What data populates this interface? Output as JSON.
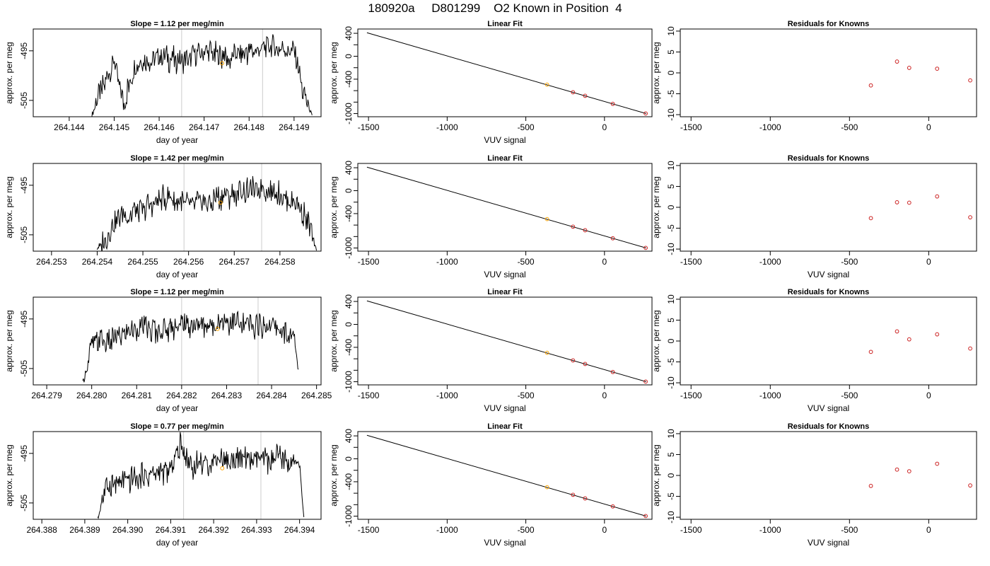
{
  "page": {
    "title": "180920a     D801299    O2 Known in Position  4"
  },
  "chart_data": [
    {
      "type": "line",
      "panel": "timeseries",
      "title": "Slope =  1.12  per meg/min",
      "xlabel": "day of year",
      "ylabel": "approx. per meg",
      "xlim": [
        264.1432,
        264.1496
      ],
      "ylim": [
        -508.3,
        -490.6
      ],
      "xticks": [
        "264.144",
        "264.145",
        "264.146",
        "264.147",
        "264.148",
        "264.149"
      ],
      "yticks": [
        "-495",
        "-505"
      ],
      "vlines": [
        264.1465,
        264.1483
      ],
      "series": [
        {
          "x": [
            264.1445,
            264.145,
            264.1452,
            264.1455,
            264.146,
            264.1465,
            264.147,
            264.1475,
            264.148,
            264.1485,
            264.149,
            264.1492,
            264.1494
          ],
          "y": [
            -508.0,
            -496.5,
            -505.5,
            -497.5,
            -496.0,
            -497.5,
            -495.0,
            -496.5,
            -495.0,
            -494.5,
            -495.5,
            -503.0,
            -508.3
          ]
        }
      ],
      "points": [
        {
          "x": 264.1474,
          "y": -497.5,
          "color": "#ffa500"
        }
      ]
    },
    {
      "type": "scatter",
      "panel": "fit",
      "title": "Linear Fit",
      "xlabel": "VUV signal",
      "ylabel": "approx. per meg",
      "xlim": [
        -1568,
        302
      ],
      "ylim": [
        -1055,
        475
      ],
      "xticks": [
        -1500,
        -1000,
        -500,
        0
      ],
      "yticks": [
        400,
        0,
        -400,
        -1000
      ],
      "fit_line": {
        "x": [
          -1510,
          265
        ],
        "y": [
          410,
          -1000
        ]
      },
      "points": [
        {
          "x": -365,
          "y": -495,
          "color": "#ffa500"
        },
        {
          "x": -200,
          "y": -628,
          "color": "#cc2222"
        },
        {
          "x": -123,
          "y": -690,
          "color": "#cc2222"
        },
        {
          "x": 53,
          "y": -830,
          "color": "#cc2222"
        },
        {
          "x": 262,
          "y": -998,
          "color": "#cc2222"
        }
      ]
    },
    {
      "type": "scatter",
      "panel": "residuals",
      "title": "Residuals for Knowns",
      "xlabel": "",
      "ylabel": "approx. per meg",
      "xlim": [
        -1568,
        302
      ],
      "ylim": [
        -10.5,
        10.5
      ],
      "xticks": [
        -1500,
        -1000,
        -500,
        0
      ],
      "yticks": [
        10,
        5,
        0,
        -5,
        -10
      ],
      "points": [
        {
          "x": -365,
          "y": -3.0,
          "color": "#cc2222"
        },
        {
          "x": -200,
          "y": 2.7,
          "color": "#cc2222"
        },
        {
          "x": -123,
          "y": 1.2,
          "color": "#cc2222"
        },
        {
          "x": 53,
          "y": 1.0,
          "color": "#cc2222"
        },
        {
          "x": 262,
          "y": -1.8,
          "color": "#cc2222"
        }
      ]
    },
    {
      "type": "line",
      "panel": "timeseries",
      "title": "Slope =  1.42  per meg/min",
      "xlabel": "day of year",
      "ylabel": "approx. per meg",
      "xlim": [
        264.2526,
        264.2589
      ],
      "ylim": [
        -508.3,
        -490.6
      ],
      "xticks": [
        "264.253",
        "264.254",
        "264.255",
        "264.256",
        "264.257",
        "264.258"
      ],
      "yticks": [
        "-495",
        "-505"
      ],
      "vlines": [
        264.2559,
        264.2576
      ],
      "series": [
        {
          "x": [
            264.254,
            264.2545,
            264.255,
            264.2555,
            264.256,
            264.2565,
            264.257,
            264.2575,
            264.258,
            264.2585,
            264.2587,
            264.2588
          ],
          "y": [
            -508.0,
            -501.5,
            -500.0,
            -497.5,
            -499.0,
            -498.0,
            -497.0,
            -495.5,
            -496.5,
            -500.0,
            -505.0,
            -508.3
          ]
        }
      ],
      "points": [
        {
          "x": 264.2567,
          "y": -498.5,
          "color": "#ffa500"
        }
      ]
    },
    {
      "type": "scatter",
      "panel": "fit",
      "title": "Linear Fit",
      "xlabel": "VUV signal",
      "ylabel": "approx. per meg",
      "xlim": [
        -1568,
        302
      ],
      "ylim": [
        -1055,
        475
      ],
      "xticks": [
        -1500,
        -1000,
        -500,
        0
      ],
      "yticks": [
        400,
        0,
        -400,
        -1000
      ],
      "fit_line": {
        "x": [
          -1510,
          265
        ],
        "y": [
          410,
          -1000
        ]
      },
      "points": [
        {
          "x": -365,
          "y": -495,
          "color": "#ffa500"
        },
        {
          "x": -200,
          "y": -628,
          "color": "#cc2222"
        },
        {
          "x": -123,
          "y": -690,
          "color": "#cc2222"
        },
        {
          "x": 53,
          "y": -830,
          "color": "#cc2222"
        },
        {
          "x": 262,
          "y": -998,
          "color": "#cc2222"
        }
      ]
    },
    {
      "type": "scatter",
      "panel": "residuals",
      "title": "Residuals for Knowns",
      "xlabel": "VUV signal",
      "ylabel": "approx. per meg",
      "xlim": [
        -1568,
        302
      ],
      "ylim": [
        -10.5,
        10.5
      ],
      "xticks": [
        -1500,
        -1000,
        -500,
        0
      ],
      "yticks": [
        10,
        5,
        0,
        -5,
        -10
      ],
      "points": [
        {
          "x": -365,
          "y": -2.6,
          "color": "#cc2222"
        },
        {
          "x": -200,
          "y": 1.2,
          "color": "#cc2222"
        },
        {
          "x": -123,
          "y": 1.1,
          "color": "#cc2222"
        },
        {
          "x": 53,
          "y": 2.6,
          "color": "#cc2222"
        },
        {
          "x": 262,
          "y": -2.4,
          "color": "#cc2222"
        }
      ]
    },
    {
      "type": "line",
      "panel": "timeseries",
      "title": "Slope =  1.12  per meg/min",
      "xlabel": "day of year",
      "ylabel": "approx. per meg",
      "xlim": [
        264.2787,
        264.2851
      ],
      "ylim": [
        -508.3,
        -490.6
      ],
      "xticks": [
        "264.279",
        "264.280",
        "264.281",
        "264.282",
        "264.283",
        "264.284",
        "264.285"
      ],
      "yticks": [
        "-495",
        "-505"
      ],
      "vlines": [
        264.282,
        264.2837
      ],
      "series": [
        {
          "x": [
            264.2798,
            264.28,
            264.2805,
            264.281,
            264.2815,
            264.282,
            264.2825,
            264.283,
            264.2835,
            264.284,
            264.2845,
            264.2846
          ],
          "y": [
            -508.3,
            -500.0,
            -499.0,
            -497.0,
            -497.5,
            -496.0,
            -496.5,
            -495.5,
            -496.5,
            -496.0,
            -499.0,
            -505.5
          ]
        }
      ],
      "points": [
        {
          "x": 264.2828,
          "y": -497.0,
          "color": "#ffa500"
        }
      ]
    },
    {
      "type": "scatter",
      "panel": "fit",
      "title": "Linear Fit",
      "xlabel": "VUV signal",
      "ylabel": "approx. per meg",
      "xlim": [
        -1568,
        302
      ],
      "ylim": [
        -1055,
        475
      ],
      "xticks": [
        -1500,
        -1000,
        -500,
        0
      ],
      "yticks": [
        400,
        0,
        -400,
        -1000
      ],
      "fit_line": {
        "x": [
          -1510,
          265
        ],
        "y": [
          410,
          -1000
        ]
      },
      "points": [
        {
          "x": -365,
          "y": -495,
          "color": "#ffa500"
        },
        {
          "x": -200,
          "y": -628,
          "color": "#cc2222"
        },
        {
          "x": -123,
          "y": -690,
          "color": "#cc2222"
        },
        {
          "x": 53,
          "y": -830,
          "color": "#cc2222"
        },
        {
          "x": 262,
          "y": -998,
          "color": "#cc2222"
        }
      ]
    },
    {
      "type": "scatter",
      "panel": "residuals",
      "title": "Residuals for Knowns",
      "xlabel": "VUV signal",
      "ylabel": "approx. per meg",
      "xlim": [
        -1568,
        302
      ],
      "ylim": [
        -10.5,
        10.5
      ],
      "xticks": [
        -1500,
        -1000,
        -500,
        0
      ],
      "yticks": [
        10,
        5,
        0,
        -5,
        -10
      ],
      "points": [
        {
          "x": -365,
          "y": -2.6,
          "color": "#cc2222"
        },
        {
          "x": -200,
          "y": 2.3,
          "color": "#cc2222"
        },
        {
          "x": -123,
          "y": 0.4,
          "color": "#cc2222"
        },
        {
          "x": 53,
          "y": 1.6,
          "color": "#cc2222"
        },
        {
          "x": 262,
          "y": -1.8,
          "color": "#cc2222"
        }
      ]
    },
    {
      "type": "line",
      "panel": "timeseries",
      "title": "Slope =  0.77  per meg/min",
      "xlabel": "day of year",
      "ylabel": "approx. per meg",
      "xlim": [
        264.3878,
        264.3945
      ],
      "ylim": [
        -508.3,
        -490.6
      ],
      "xticks": [
        "264.388",
        "264.389",
        "264.390",
        "264.391",
        "264.392",
        "264.393",
        "264.394"
      ],
      "yticks": [
        "-495",
        "-505"
      ],
      "vlines": [
        264.3913,
        264.3931
      ],
      "series": [
        {
          "x": [
            264.3893,
            264.3895,
            264.39,
            264.3905,
            264.391,
            264.3912,
            264.3915,
            264.392,
            264.3925,
            264.393,
            264.3935,
            264.394,
            264.3941
          ],
          "y": [
            -508.3,
            -501.0,
            -500.5,
            -499.5,
            -498.5,
            -493.5,
            -497.5,
            -496.5,
            -496.0,
            -496.5,
            -496.0,
            -497.5,
            -508.0
          ]
        }
      ],
      "points": [
        {
          "x": 264.3922,
          "y": -498.0,
          "color": "#ffa500"
        }
      ]
    },
    {
      "type": "scatter",
      "panel": "fit",
      "title": "Linear Fit",
      "xlabel": "VUV signal",
      "ylabel": "approx. per meg",
      "xlim": [
        -1568,
        302
      ],
      "ylim": [
        -1055,
        475
      ],
      "xticks": [
        -1500,
        -1000,
        -500,
        0
      ],
      "yticks": [
        400,
        0,
        -400,
        -1000
      ],
      "fit_line": {
        "x": [
          -1510,
          265
        ],
        "y": [
          410,
          -1000
        ]
      },
      "points": [
        {
          "x": -365,
          "y": -495,
          "color": "#ffa500"
        },
        {
          "x": -200,
          "y": -628,
          "color": "#cc2222"
        },
        {
          "x": -123,
          "y": -690,
          "color": "#cc2222"
        },
        {
          "x": 53,
          "y": -830,
          "color": "#cc2222"
        },
        {
          "x": 262,
          "y": -998,
          "color": "#cc2222"
        }
      ]
    },
    {
      "type": "scatter",
      "panel": "residuals",
      "title": "Residuals for Knowns",
      "xlabel": "VUV signal",
      "ylabel": "approx. per meg",
      "xlim": [
        -1568,
        302
      ],
      "ylim": [
        -10.5,
        10.5
      ],
      "xticks": [
        -1500,
        -1000,
        -500,
        0
      ],
      "yticks": [
        10,
        5,
        0,
        -5,
        -10
      ],
      "points": [
        {
          "x": -365,
          "y": -2.5,
          "color": "#cc2222"
        },
        {
          "x": -200,
          "y": 1.4,
          "color": "#cc2222"
        },
        {
          "x": -123,
          "y": 1.0,
          "color": "#cc2222"
        },
        {
          "x": 53,
          "y": 2.8,
          "color": "#cc2222"
        },
        {
          "x": 262,
          "y": -2.4,
          "color": "#cc2222"
        }
      ]
    }
  ]
}
